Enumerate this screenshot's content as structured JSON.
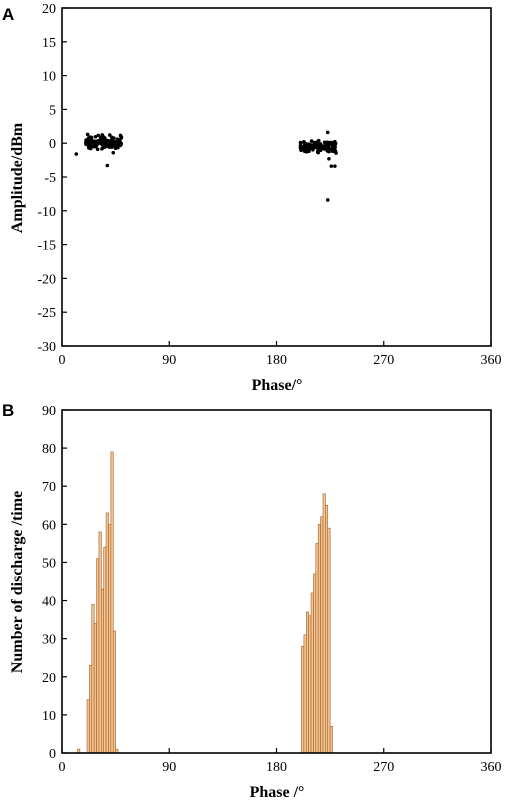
{
  "chart_data": [
    {
      "panel_label": "A",
      "type": "scatter",
      "xlabel": "Phase/°",
      "ylabel": "Amplitude/dBm",
      "xlim": [
        0,
        360
      ],
      "ylim": [
        -30,
        20
      ],
      "xticks": [
        0,
        90,
        180,
        270,
        360
      ],
      "yticks": [
        20,
        15,
        10,
        5,
        0,
        -5,
        -10,
        -15,
        -20,
        -25,
        -30
      ],
      "xtick_labels": [
        "0",
        "90",
        "180",
        "270",
        "360"
      ],
      "ytick_labels": [
        "20",
        "15",
        "10",
        "5",
        "0",
        "-5",
        "-10",
        "-15",
        "-20",
        "-25",
        "-30"
      ],
      "marker_color": "#000000",
      "clusters": [
        {
          "x_range": [
            20,
            50
          ],
          "y_center": 0.2,
          "y_spread": 1.2,
          "count": 140
        },
        {
          "x_range": [
            200,
            230
          ],
          "y_center": -0.5,
          "y_spread": 1.0,
          "count": 120
        }
      ],
      "points": [
        [
          12,
          -1.6
        ],
        [
          38,
          -3.3
        ],
        [
          43,
          -1.4
        ],
        [
          223,
          1.6
        ],
        [
          224,
          -2.3
        ],
        [
          226,
          -3.4
        ],
        [
          229,
          -3.4
        ],
        [
          223,
          -8.4
        ],
        [
          215,
          -1.4
        ]
      ]
    },
    {
      "panel_label": "B",
      "type": "bar",
      "xlabel": "Phase /°",
      "ylabel": "Number of discharge /time",
      "xlim": [
        0,
        360
      ],
      "ylim": [
        0,
        90
      ],
      "xticks": [
        0,
        90,
        180,
        270,
        360
      ],
      "yticks": [
        90,
        80,
        70,
        60,
        50,
        40,
        30,
        20,
        10,
        0
      ],
      "xtick_labels": [
        "0",
        "90",
        "180",
        "270",
        "360"
      ],
      "ytick_labels": [
        "90",
        "80",
        "70",
        "60",
        "50",
        "40",
        "30",
        "20",
        "10",
        "0"
      ],
      "bar_width_deg": 2,
      "bar_fill": "#F5C38F",
      "bar_stroke": "#A0602A",
      "bars": [
        {
          "x": 13,
          "value": 1
        },
        {
          "x": 21,
          "value": 14
        },
        {
          "x": 23,
          "value": 23
        },
        {
          "x": 25,
          "value": 39
        },
        {
          "x": 27,
          "value": 34
        },
        {
          "x": 29,
          "value": 51
        },
        {
          "x": 31,
          "value": 58
        },
        {
          "x": 33,
          "value": 43
        },
        {
          "x": 35,
          "value": 54
        },
        {
          "x": 37,
          "value": 63
        },
        {
          "x": 39,
          "value": 60
        },
        {
          "x": 41,
          "value": 79
        },
        {
          "x": 43,
          "value": 32
        },
        {
          "x": 45,
          "value": 1
        },
        {
          "x": 201,
          "value": 28
        },
        {
          "x": 203,
          "value": 31
        },
        {
          "x": 205,
          "value": 37
        },
        {
          "x": 207,
          "value": 36
        },
        {
          "x": 209,
          "value": 42
        },
        {
          "x": 211,
          "value": 47
        },
        {
          "x": 213,
          "value": 55
        },
        {
          "x": 215,
          "value": 60
        },
        {
          "x": 217,
          "value": 62
        },
        {
          "x": 219,
          "value": 68
        },
        {
          "x": 221,
          "value": 65
        },
        {
          "x": 223,
          "value": 59
        },
        {
          "x": 225,
          "value": 7
        }
      ]
    }
  ]
}
